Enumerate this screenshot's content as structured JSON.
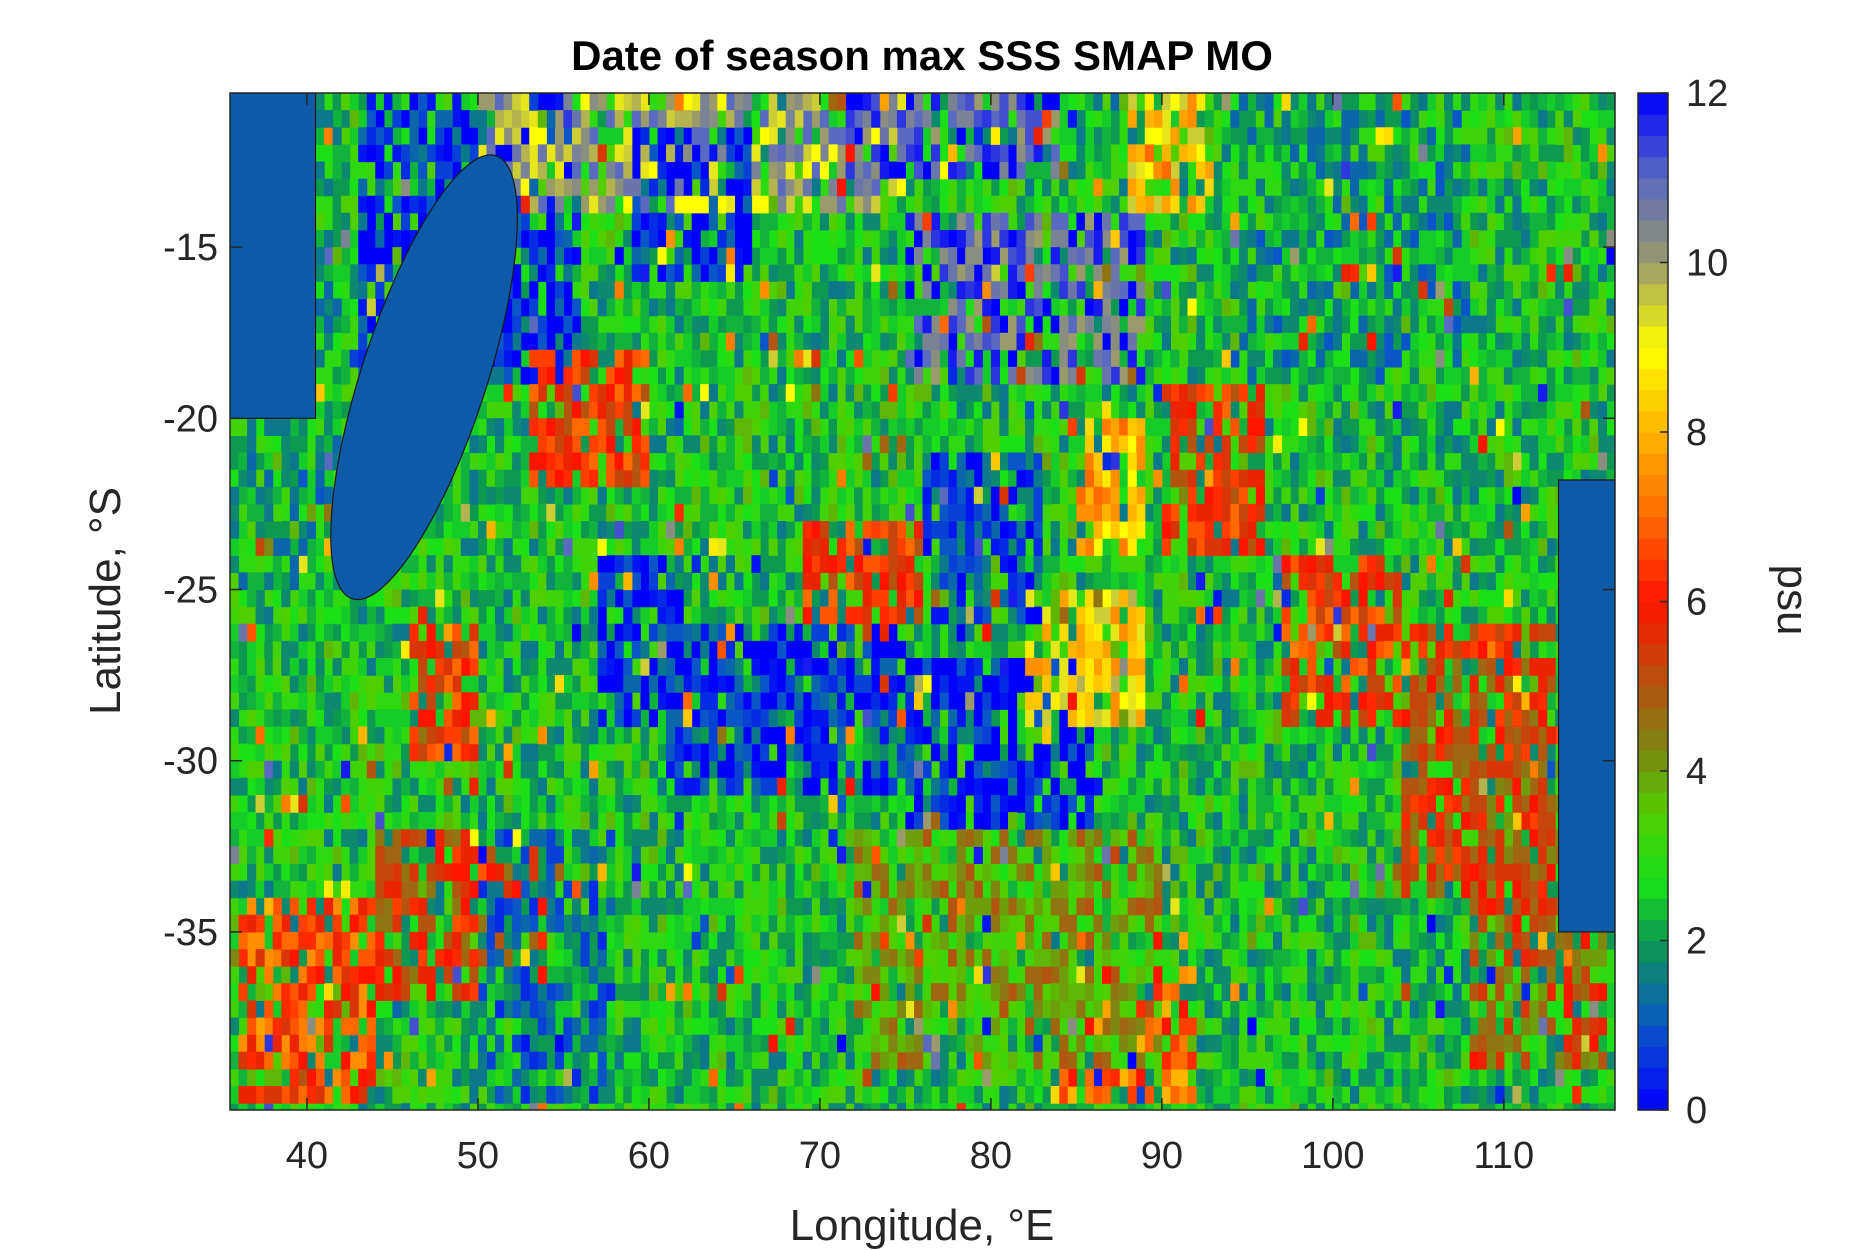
{
  "chart_data": {
    "type": "heatmap",
    "title": "Date of season max SSS SMAP MO",
    "xlabel": "Longitude, °E",
    "ylabel": "Latitude, °S",
    "xlim": [
      35.5,
      116.5
    ],
    "ylim": [
      -40.2,
      -10.5
    ],
    "x_ticks": [
      40,
      50,
      60,
      70,
      80,
      90,
      100,
      110
    ],
    "x_tick_labels": [
      "40",
      "50",
      "60",
      "70",
      "80",
      "90",
      "100",
      "110"
    ],
    "y_ticks": [
      -15,
      -20,
      -25,
      -30,
      -35
    ],
    "y_tick_labels": [
      "-15",
      "-20",
      "-25",
      "-30",
      "-35"
    ],
    "colorbar": {
      "label": "psu",
      "limits": [
        0,
        12
      ],
      "ticks": [
        0,
        2,
        4,
        6,
        8,
        10,
        12
      ],
      "tick_labels": [
        "0",
        "2",
        "4",
        "6",
        "8",
        "10",
        "12"
      ],
      "colormap": [
        {
          "value": 0,
          "color": "#0000ff"
        },
        {
          "value": 1,
          "color": "#0a56c8"
        },
        {
          "value": 2,
          "color": "#0d9a50"
        },
        {
          "value": 2.7,
          "color": "#18e018"
        },
        {
          "value": 3.5,
          "color": "#4fcf00"
        },
        {
          "value": 4.2,
          "color": "#7a8a10"
        },
        {
          "value": 5,
          "color": "#b35510"
        },
        {
          "value": 6,
          "color": "#ff1400"
        },
        {
          "value": 7,
          "color": "#ff6a00"
        },
        {
          "value": 8,
          "color": "#ffb400"
        },
        {
          "value": 9,
          "color": "#ffff00"
        },
        {
          "value": 10,
          "color": "#9a9a6a"
        },
        {
          "value": 11,
          "color": "#5a6ac0"
        },
        {
          "value": 12,
          "color": "#0000ff"
        }
      ]
    },
    "land_color": "#0d5aa8",
    "regions": [
      {
        "lon": [
          35.5,
          116.5
        ],
        "lat": [
          -40.2,
          -10.5
        ],
        "value": 2.6
      },
      {
        "lon": [
          43,
          56
        ],
        "lat": [
          -19,
          -10.5
        ],
        "value": 0.5
      },
      {
        "lon": [
          50,
          75
        ],
        "lat": [
          -14,
          -10.5
        ],
        "value": 10
      },
      {
        "lon": [
          59,
          66
        ],
        "lat": [
          -16,
          -11.5
        ],
        "value": 0.4
      },
      {
        "lon": [
          71,
          84
        ],
        "lat": [
          -13,
          -10.5
        ],
        "value": 11
      },
      {
        "lon": [
          75,
          89
        ],
        "lat": [
          -19,
          -14
        ],
        "value": 11
      },
      {
        "lon": [
          88,
          93
        ],
        "lat": [
          -14,
          -10.5
        ],
        "value": 8.5
      },
      {
        "lon": [
          85,
          89
        ],
        "lat": [
          -24,
          -20
        ],
        "value": 8
      },
      {
        "lon": [
          90,
          96
        ],
        "lat": [
          -24,
          -19
        ],
        "value": 6
      },
      {
        "lon": [
          97,
          104
        ],
        "lat": [
          -29,
          -24
        ],
        "value": 6
      },
      {
        "lon": [
          104,
          113
        ],
        "lat": [
          -34,
          -26
        ],
        "value": 5.5
      },
      {
        "lon": [
          108,
          116
        ],
        "lat": [
          -39,
          -30
        ],
        "value": 5
      },
      {
        "lon": [
          61,
          75
        ],
        "lat": [
          -31,
          -26
        ],
        "value": 0.3
      },
      {
        "lon": [
          75,
          86
        ],
        "lat": [
          -32,
          -27
        ],
        "value": 0.2
      },
      {
        "lon": [
          57,
          62
        ],
        "lat": [
          -29,
          -24
        ],
        "value": 0.5
      },
      {
        "lon": [
          76,
          83
        ],
        "lat": [
          -26,
          -21
        ],
        "value": 0.8
      },
      {
        "lon": [
          46,
          50
        ],
        "lat": [
          -30,
          -26
        ],
        "value": 6
      },
      {
        "lon": [
          36,
          44
        ],
        "lat": [
          -40,
          -34
        ],
        "value": 6.5
      },
      {
        "lon": [
          44,
          54
        ],
        "lat": [
          -37,
          -32
        ],
        "value": 5.5
      },
      {
        "lon": [
          84,
          92
        ],
        "lat": [
          -40,
          -36
        ],
        "value": 7
      },
      {
        "lon": [
          53,
          60
        ],
        "lat": [
          -22,
          -18
        ],
        "value": 6
      },
      {
        "lon": [
          69,
          76
        ],
        "lat": [
          -26,
          -23
        ],
        "value": 6
      },
      {
        "lon": [
          82,
          89
        ],
        "lat": [
          -29,
          -25
        ],
        "value": 8.5
      },
      {
        "lon": [
          72,
          90
        ],
        "lat": [
          -39,
          -32
        ],
        "value": 4
      },
      {
        "lon": [
          94,
          108
        ],
        "lat": [
          -19,
          -10.5
        ],
        "value": 2
      },
      {
        "lon": [
          36,
          42
        ],
        "lat": [
          -25,
          -14
        ],
        "value": 2.2
      },
      {
        "lon": [
          50,
          58
        ],
        "lat": [
          -40,
          -32
        ],
        "value": 1.5
      }
    ],
    "land_regions": [
      {
        "name": "Africa",
        "lon": [
          35.5,
          40.5
        ],
        "lat": [
          -20,
          -10.5
        ]
      },
      {
        "name": "Madagascar",
        "lon": [
          43.2,
          50.5
        ],
        "lat": [
          -25.6,
          -12
        ]
      },
      {
        "name": "Australia",
        "lon": [
          113.2,
          116.5
        ],
        "lat": [
          -35,
          -21.8
        ]
      }
    ]
  }
}
